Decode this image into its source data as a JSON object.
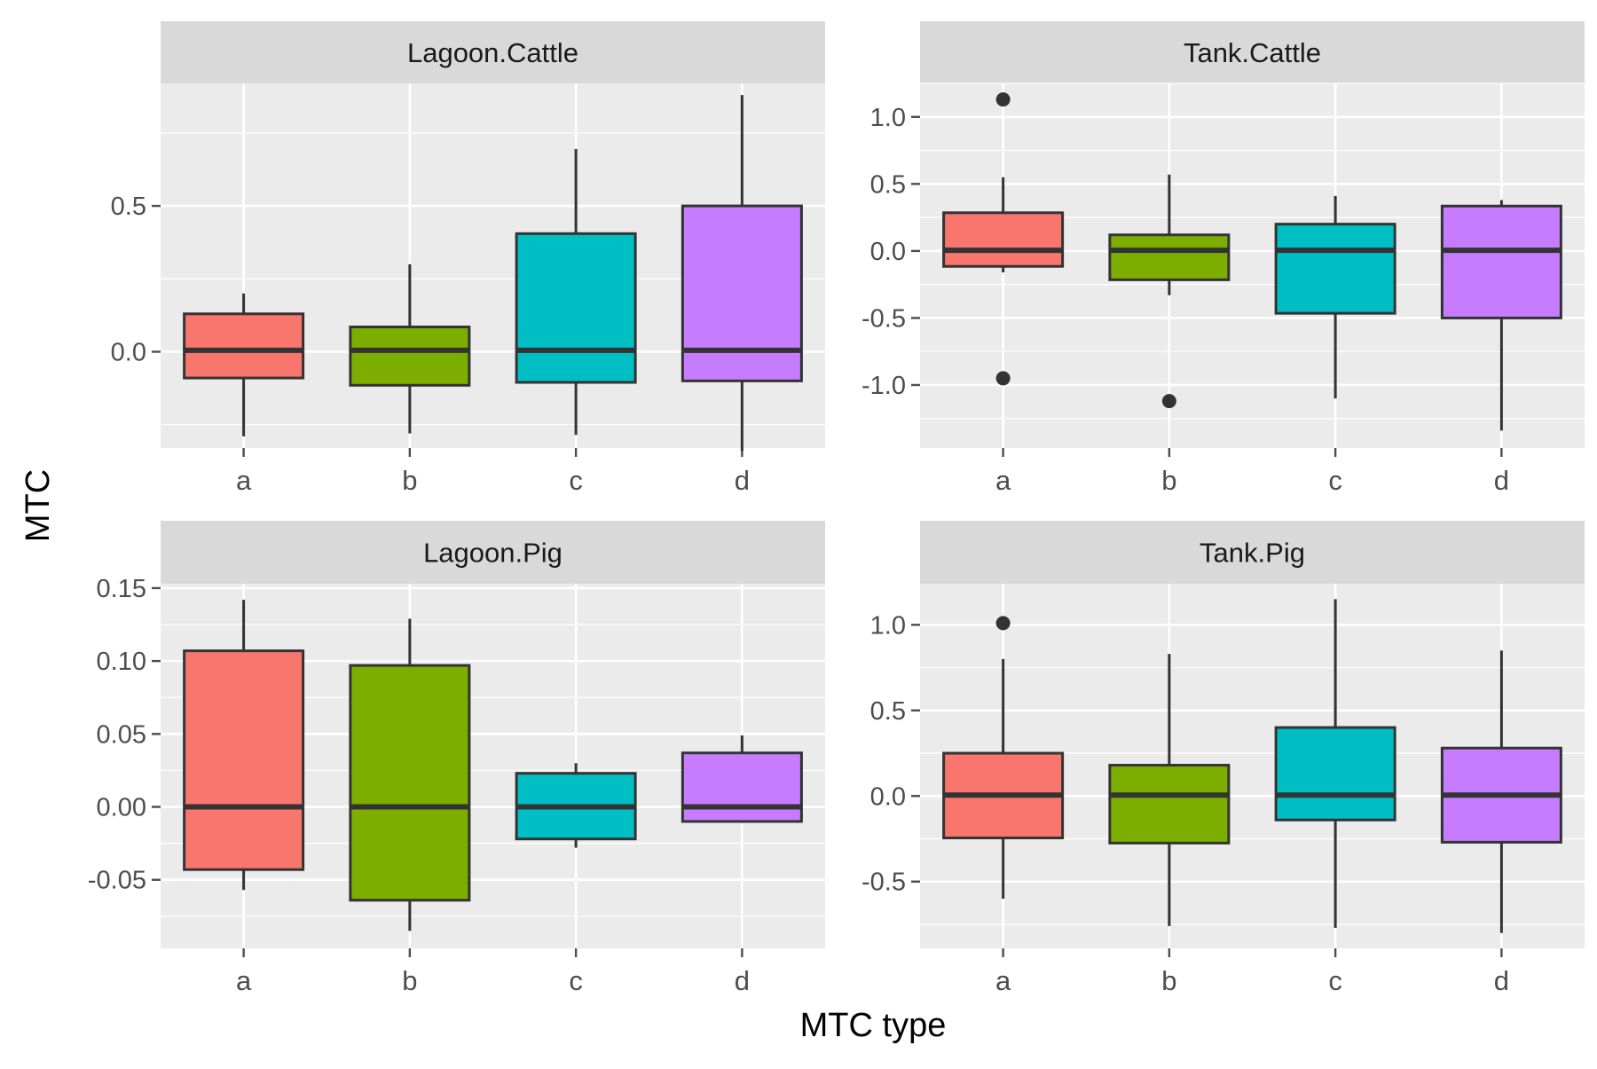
{
  "chart_data": {
    "type": "box",
    "xlabel": "MTC type",
    "ylabel": "MTC",
    "categories": [
      "a",
      "b",
      "c",
      "d"
    ],
    "fill_colors": [
      "#F8766D",
      "#7CAE00",
      "#00BFC4",
      "#C77CFF"
    ],
    "panel_background": "#EBEBEB",
    "strip_background": "#D9D9D9",
    "grid": true,
    "panels": [
      {
        "title": "Lagoon.Cattle",
        "ylim": [
          -0.33,
          0.92
        ],
        "yticks": [
          0.0,
          0.5
        ],
        "ytick_labels": [
          "0.0",
          "0.5"
        ],
        "boxes": [
          {
            "category": "a",
            "whisker_low": -0.29,
            "q1": -0.09,
            "median": 0.005,
            "q3": 0.13,
            "whisker_high": 0.2,
            "outliers": []
          },
          {
            "category": "b",
            "whisker_low": -0.28,
            "q1": -0.115,
            "median": 0.005,
            "q3": 0.085,
            "whisker_high": 0.3,
            "outliers": []
          },
          {
            "category": "c",
            "whisker_low": -0.285,
            "q1": -0.105,
            "median": 0.005,
            "q3": 0.405,
            "whisker_high": 0.695,
            "outliers": []
          },
          {
            "category": "d",
            "whisker_low": -0.34,
            "q1": -0.1,
            "median": 0.005,
            "q3": 0.5,
            "whisker_high": 0.88,
            "outliers": []
          }
        ]
      },
      {
        "title": "Tank.Cattle",
        "ylim": [
          -1.47,
          1.25
        ],
        "yticks": [
          -1.0,
          -0.5,
          0.0,
          0.5,
          1.0
        ],
        "ytick_labels": [
          "-1.0",
          "-0.5",
          "0.0",
          "0.5",
          "1.0"
        ],
        "boxes": [
          {
            "category": "a",
            "whisker_low": -0.16,
            "q1": -0.115,
            "median": 0.005,
            "q3": 0.285,
            "whisker_high": 0.55,
            "outliers": [
              1.13,
              -0.95
            ]
          },
          {
            "category": "b",
            "whisker_low": -0.33,
            "q1": -0.215,
            "median": 0.005,
            "q3": 0.12,
            "whisker_high": 0.57,
            "outliers": [
              -1.12
            ]
          },
          {
            "category": "c",
            "whisker_low": -1.1,
            "q1": -0.465,
            "median": 0.005,
            "q3": 0.2,
            "whisker_high": 0.41,
            "outliers": []
          },
          {
            "category": "d",
            "whisker_low": -1.34,
            "q1": -0.5,
            "median": 0.005,
            "q3": 0.335,
            "whisker_high": 0.38,
            "outliers": []
          }
        ]
      },
      {
        "title": "Lagoon.Pig",
        "ylim": [
          -0.097,
          0.153
        ],
        "yticks": [
          -0.05,
          0.0,
          0.05,
          0.1,
          0.15
        ],
        "ytick_labels": [
          "-0.05",
          "0.00",
          "0.05",
          "0.10",
          "0.15"
        ],
        "boxes": [
          {
            "category": "a",
            "whisker_low": -0.057,
            "q1": -0.043,
            "median": 0.0,
            "q3": 0.107,
            "whisker_high": 0.142,
            "outliers": []
          },
          {
            "category": "b",
            "whisker_low": -0.085,
            "q1": -0.064,
            "median": 0.0,
            "q3": 0.097,
            "whisker_high": 0.129,
            "outliers": []
          },
          {
            "category": "c",
            "whisker_low": -0.028,
            "q1": -0.022,
            "median": 0.0,
            "q3": 0.023,
            "whisker_high": 0.03,
            "outliers": []
          },
          {
            "category": "d",
            "whisker_low": -0.011,
            "q1": -0.01,
            "median": 0.0,
            "q3": 0.037,
            "whisker_high": 0.049,
            "outliers": []
          }
        ]
      },
      {
        "title": "Tank.Pig",
        "ylim": [
          -0.89,
          1.24
        ],
        "yticks": [
          -0.5,
          0.0,
          0.5,
          1.0
        ],
        "ytick_labels": [
          "-0.5",
          "0.0",
          "0.5",
          "1.0"
        ],
        "boxes": [
          {
            "category": "a",
            "whisker_low": -0.6,
            "q1": -0.245,
            "median": 0.005,
            "q3": 0.25,
            "whisker_high": 0.8,
            "outliers": [
              1.01
            ]
          },
          {
            "category": "b",
            "whisker_low": -0.76,
            "q1": -0.275,
            "median": 0.005,
            "q3": 0.18,
            "whisker_high": 0.83,
            "outliers": []
          },
          {
            "category": "c",
            "whisker_low": -0.77,
            "q1": -0.14,
            "median": 0.005,
            "q3": 0.4,
            "whisker_high": 1.15,
            "outliers": []
          },
          {
            "category": "d",
            "whisker_low": -0.8,
            "q1": -0.27,
            "median": 0.005,
            "q3": 0.28,
            "whisker_high": 0.85,
            "outliers": []
          }
        ]
      }
    ]
  }
}
